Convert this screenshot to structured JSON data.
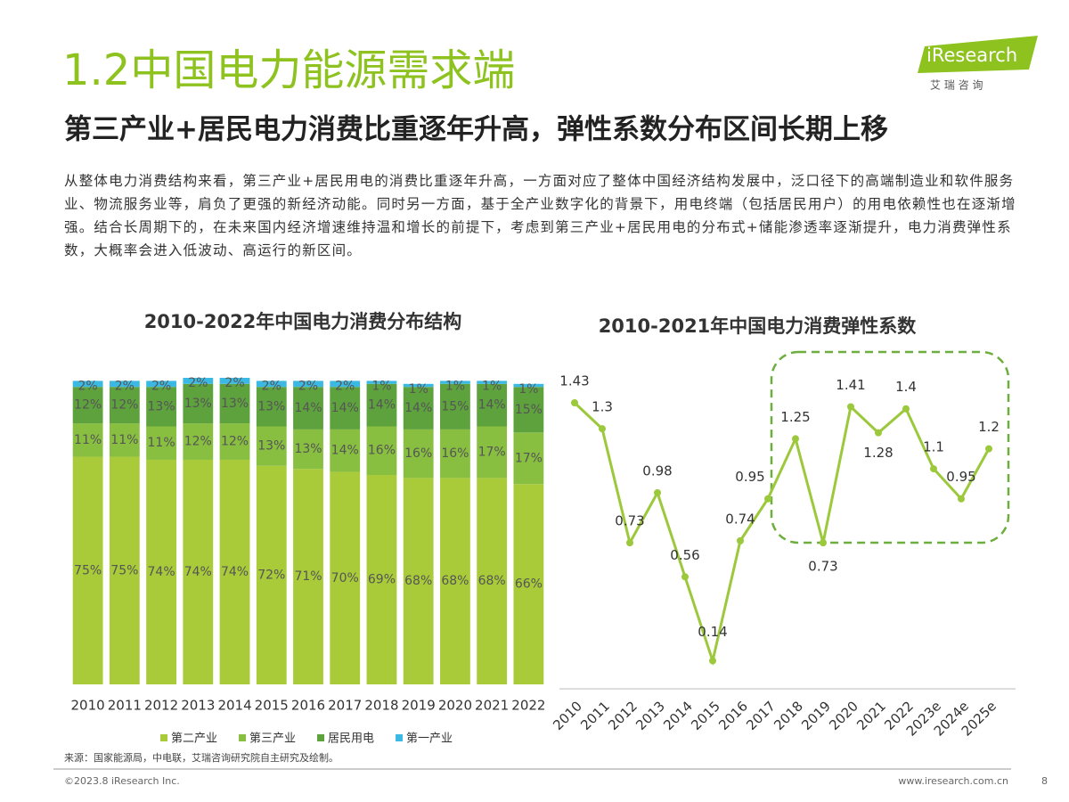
{
  "header": {
    "title": "1.2中国电力能源需求端",
    "subtitle": "第三产业+居民电力消费比重逐年升高，弹性系数分布区间长期上移",
    "logo": "iResearch",
    "logo_sub": "艾 瑞 咨 询"
  },
  "body": {
    "paragraph": "从整体电力消费结构来看，第三产业+居民用电的消费比重逐年升高，一方面对应了整体中国经济结构发展中，泛口径下的高端制造业和软件服务业、物流服务业等，肩负了更强的新经济动能。同时另一方面，基于全产业数字化的背景下，用电终端（包括居民用户）的用电依赖性也在逐渐增强。结合长周期下的，在未来国内经济增速维持温和增长的前提下，考虑到第三产业+居民用电的分布式+储能渗透率逐渐提升，电力消费弹性系数，大概率会进入低波动、高运行的新区间。"
  },
  "chart_data": [
    {
      "type": "bar",
      "stacked": true,
      "title": "2010-2022年中国电力消费分布结构",
      "categories": [
        "2010",
        "2011",
        "2012",
        "2013",
        "2014",
        "2015",
        "2016",
        "2017",
        "2018",
        "2019",
        "2020",
        "2021",
        "2022"
      ],
      "series": [
        {
          "name": "第二产业",
          "color": "#a9cb3a",
          "values": [
            75,
            75,
            74,
            74,
            74,
            72,
            71,
            70,
            69,
            68,
            68,
            68,
            66
          ],
          "value_labels": [
            "75%",
            "75%",
            "74%",
            "74%",
            "74%",
            "72%",
            "71%",
            "70%",
            "69%",
            "68%",
            "68%",
            "68%",
            "66%"
          ]
        },
        {
          "name": "第三产业",
          "color": "#88bf41",
          "values": [
            11,
            11,
            11,
            12,
            12,
            13,
            13,
            14,
            16,
            16,
            16,
            17,
            17
          ],
          "value_labels": [
            "11%",
            "11%",
            "11%",
            "12%",
            "12%",
            "13%",
            "13%",
            "14%",
            "16%",
            "16%",
            "16%",
            "17%",
            "17%"
          ]
        },
        {
          "name": "居民用电",
          "color": "#5ea23d",
          "values": [
            12,
            12,
            13,
            13,
            13,
            13,
            14,
            14,
            14,
            14,
            15,
            14,
            15
          ],
          "value_labels": [
            "12%",
            "12%",
            "13%",
            "13%",
            "13%",
            "13%",
            "14%",
            "14%",
            "14%",
            "14%",
            "15%",
            "14%",
            "15%"
          ]
        },
        {
          "name": "第一产业",
          "color": "#3cb9e2",
          "values": [
            2,
            2,
            2,
            2,
            2,
            2,
            2,
            2,
            1,
            1,
            1,
            1,
            1
          ],
          "value_labels": [
            "2%",
            "2%",
            "2%",
            "2%",
            "2%",
            "2%",
            "2%",
            "2%",
            "1%",
            "1%",
            "1%",
            "1%",
            "1%"
          ]
        }
      ],
      "source": "来源：国家能源局，中电联，艾瑞咨询研究院自主研究及绘制。"
    },
    {
      "type": "line",
      "title": "2010-2021年中国电力消费弹性系数",
      "categories": [
        "2010",
        "2011",
        "2012",
        "2013",
        "2014",
        "2015",
        "2016",
        "2017",
        "2018",
        "2019",
        "2020",
        "2021",
        "2022",
        "2023e",
        "2024e",
        "2025e"
      ],
      "values": [
        1.43,
        1.3,
        0.73,
        0.98,
        0.56,
        0.14,
        0.74,
        0.95,
        1.25,
        0.73,
        1.41,
        1.28,
        1.4,
        1.1,
        0.95,
        1.2
      ],
      "color": "#9cc83b"
    }
  ],
  "footer": {
    "copyright": "©2023.8 iResearch Inc.",
    "url": "www.iresearch.com.cn",
    "page": "8"
  }
}
